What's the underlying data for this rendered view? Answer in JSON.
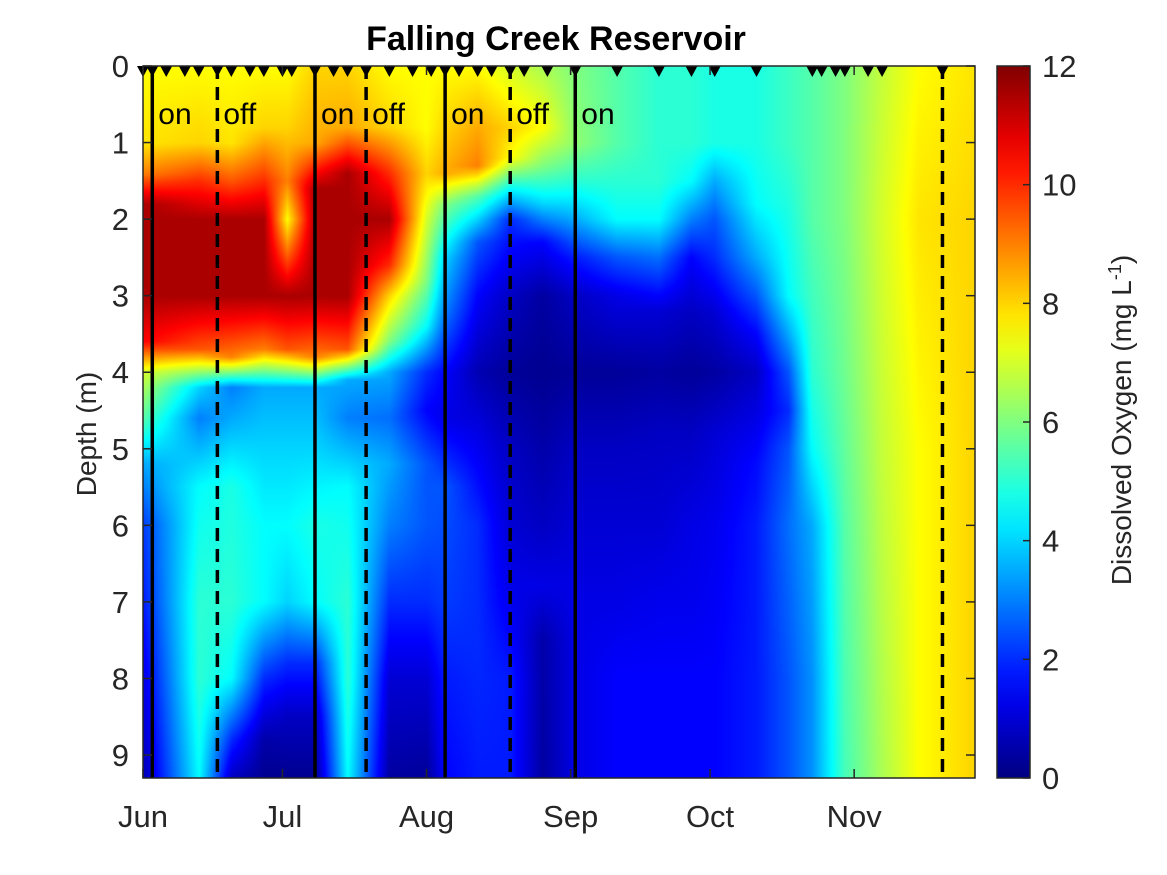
{
  "chart_data": {
    "type": "heatmap",
    "title": "Falling Creek Reservoir",
    "ylabel": "Depth (m)",
    "xlabel": "",
    "colorbar": {
      "label": "Dissolved Oxygen (mg L",
      "label_superscript": "-1",
      "label_close": ")",
      "range": [
        0,
        12
      ],
      "ticks": [
        "0",
        "2",
        "4",
        "6",
        "8",
        "10",
        "12"
      ],
      "colormap": "jet"
    },
    "y_axis": {
      "range": [
        0,
        9.3
      ],
      "reversed": true,
      "ticks": [
        "0",
        "1",
        "2",
        "3",
        "4",
        "5",
        "6",
        "7",
        "8",
        "9"
      ]
    },
    "x_axis": {
      "range": [
        "2019-06-01",
        "2019-11-27"
      ],
      "ticks": [
        {
          "date": "2019-06-01",
          "label": "Jun"
        },
        {
          "date": "2019-07-01",
          "label": "Jul"
        },
        {
          "date": "2019-08-01",
          "label": "Aug"
        },
        {
          "date": "2019-09-01",
          "label": "Sep"
        },
        {
          "date": "2019-10-01",
          "label": "Oct"
        },
        {
          "date": "2019-11-01",
          "label": "Nov"
        }
      ]
    },
    "phase_lines": [
      {
        "date": "2019-06-03",
        "style": "solid",
        "label": "on"
      },
      {
        "date": "2019-06-17",
        "style": "dashed",
        "label": "off"
      },
      {
        "date": "2019-07-08",
        "style": "solid",
        "label": "on"
      },
      {
        "date": "2019-07-19",
        "style": "dashed",
        "label": "off"
      },
      {
        "date": "2019-08-05",
        "style": "solid",
        "label": "on"
      },
      {
        "date": "2019-08-19",
        "style": "dashed",
        "label": "off"
      },
      {
        "date": "2019-09-02",
        "style": "solid",
        "label": "on"
      },
      {
        "date": "2019-11-20",
        "style": "dashed",
        "label": ""
      }
    ],
    "sampling_dates": [
      "2019-06-01",
      "2019-06-03",
      "2019-06-06",
      "2019-06-10",
      "2019-06-13",
      "2019-06-17",
      "2019-06-20",
      "2019-06-24",
      "2019-06-27",
      "2019-07-01",
      "2019-07-03",
      "2019-07-08",
      "2019-07-12",
      "2019-07-15",
      "2019-07-19",
      "2019-07-24",
      "2019-07-29",
      "2019-08-02",
      "2019-08-05",
      "2019-08-08",
      "2019-08-12",
      "2019-08-15",
      "2019-08-19",
      "2019-08-22",
      "2019-08-27",
      "2019-09-02",
      "2019-09-11",
      "2019-09-20",
      "2019-09-27",
      "2019-10-02",
      "2019-10-11",
      "2019-10-23",
      "2019-10-25",
      "2019-10-28",
      "2019-10-30",
      "2019-11-04",
      "2019-11-07",
      "2019-11-20"
    ],
    "profiles": [
      {
        "date": "2019-06-01",
        "depths": [
          0,
          1.0,
          1.4,
          1.8,
          3.0,
          3.6,
          4.0,
          4.6,
          5.2,
          6.0,
          7.0,
          8.0,
          9.3
        ],
        "do": [
          7.5,
          7.8,
          9.0,
          11.5,
          11.5,
          10.5,
          7.0,
          5.5,
          3.5,
          2.2,
          1.8,
          1.2,
          0.6
        ]
      },
      {
        "date": "2019-06-13",
        "depths": [
          0,
          1.0,
          1.5,
          2.0,
          3.0,
          3.7,
          4.2,
          4.6,
          5.5,
          7.0,
          8.0,
          9.3
        ],
        "do": [
          7.5,
          8.0,
          10.0,
          11.5,
          11.5,
          9.5,
          4.0,
          3.0,
          4.5,
          5.0,
          5.0,
          4.5
        ]
      },
      {
        "date": "2019-06-20",
        "depths": [
          0,
          1.0,
          1.5,
          2.0,
          3.0,
          3.8,
          4.2,
          4.6,
          5.5,
          7.0,
          8.0,
          8.8,
          9.3
        ],
        "do": [
          7.5,
          7.8,
          9.5,
          11.5,
          11.5,
          9.0,
          3.0,
          3.5,
          4.8,
          5.0,
          4.5,
          2.0,
          0.8
        ]
      },
      {
        "date": "2019-06-27",
        "depths": [
          0,
          0.8,
          1.5,
          2.0,
          3.0,
          3.7,
          4.2,
          5.0,
          6.0,
          7.0,
          8.0,
          8.8,
          9.3
        ],
        "do": [
          7.5,
          8.0,
          10.0,
          11.5,
          11.5,
          9.0,
          3.5,
          4.0,
          4.5,
          4.5,
          2.0,
          0.5,
          0.2
        ]
      },
      {
        "date": "2019-07-02",
        "depths": [
          0,
          0.8,
          1.5,
          2.0,
          2.5,
          3.0,
          3.7,
          4.2,
          5.0,
          6.0,
          7.0,
          7.8,
          8.5,
          9.3
        ],
        "do": [
          7.5,
          8.0,
          9.0,
          7.5,
          9.5,
          11.5,
          9.5,
          3.5,
          4.0,
          4.5,
          4.0,
          2.0,
          0.8,
          0.2
        ]
      },
      {
        "date": "2019-07-08",
        "depths": [
          0,
          1.0,
          1.6,
          2.0,
          3.0,
          3.8,
          4.2,
          5.0,
          6.0,
          7.0,
          7.8,
          8.5,
          9.3
        ],
        "do": [
          8.0,
          8.5,
          11.5,
          11.5,
          11.5,
          9.0,
          3.5,
          4.0,
          4.8,
          4.5,
          2.0,
          0.8,
          0.2
        ]
      },
      {
        "date": "2019-07-15",
        "depths": [
          0,
          0.8,
          1.4,
          2.0,
          3.0,
          3.7,
          4.1,
          4.6,
          5.5,
          7.0,
          8.0,
          9.3
        ],
        "do": [
          8.0,
          8.5,
          11.5,
          11.5,
          11.5,
          9.5,
          3.5,
          3.0,
          4.5,
          5.0,
          5.0,
          4.5
        ]
      },
      {
        "date": "2019-07-24",
        "depths": [
          0,
          0.8,
          1.4,
          2.0,
          2.6,
          3.0,
          3.6,
          4.0,
          4.6,
          5.2,
          6.0,
          7.0,
          8.0,
          9.3
        ],
        "do": [
          7.5,
          8.0,
          10.0,
          11.5,
          10.0,
          8.0,
          6.0,
          3.5,
          2.8,
          3.5,
          3.0,
          2.0,
          1.0,
          0.4
        ]
      },
      {
        "date": "2019-08-01",
        "depths": [
          0,
          0.8,
          1.4,
          2.0,
          2.8,
          3.4,
          4.0,
          4.5,
          5.2,
          6.0,
          7.0,
          8.0,
          9.3
        ],
        "do": [
          7.5,
          7.5,
          8.0,
          7.0,
          6.0,
          4.5,
          2.0,
          1.5,
          2.5,
          2.5,
          2.0,
          1.0,
          0.3
        ]
      },
      {
        "date": "2019-08-05",
        "depths": [
          0,
          0.8,
          1.4,
          1.8,
          2.5,
          3.2,
          4.0,
          4.6,
          5.5,
          7.0,
          8.0,
          9.3
        ],
        "do": [
          7.5,
          8.0,
          8.5,
          6.0,
          4.0,
          3.0,
          1.5,
          1.2,
          2.5,
          2.2,
          1.8,
          1.5
        ]
      },
      {
        "date": "2019-08-12",
        "depths": [
          0,
          0.8,
          1.3,
          1.7,
          2.3,
          3.0,
          4.0,
          4.8,
          6.0,
          7.5,
          9.3
        ],
        "do": [
          7.5,
          8.5,
          9.0,
          5.5,
          2.5,
          1.5,
          0.6,
          1.2,
          2.0,
          2.0,
          1.8
        ]
      },
      {
        "date": "2019-08-19",
        "depths": [
          0,
          0.8,
          1.2,
          1.6,
          2.0,
          3.0,
          4.0,
          5.0,
          6.0,
          7.0,
          8.0,
          9.3
        ],
        "do": [
          7.0,
          8.0,
          7.5,
          4.5,
          2.0,
          0.8,
          0.3,
          0.8,
          1.0,
          1.3,
          1.8,
          1.8
        ]
      },
      {
        "date": "2019-08-26",
        "depths": [
          0,
          0.8,
          1.3,
          1.8,
          2.3,
          3.0,
          4.0,
          5.0,
          6.0,
          6.8,
          7.5,
          9.3
        ],
        "do": [
          6.5,
          7.5,
          6.0,
          4.0,
          1.5,
          0.4,
          0.2,
          0.5,
          0.8,
          1.2,
          0.5,
          0.4
        ]
      },
      {
        "date": "2019-09-02",
        "depths": [
          0,
          1.0,
          1.5,
          2.0,
          2.5,
          3.0,
          4.0,
          5.0,
          6.0,
          7.0,
          8.0,
          9.3
        ],
        "do": [
          6.0,
          6.2,
          5.0,
          3.5,
          1.8,
          0.8,
          0.3,
          0.8,
          1.0,
          1.2,
          1.2,
          1.2
        ]
      },
      {
        "date": "2019-09-11",
        "depths": [
          0,
          1.0,
          1.5,
          2.0,
          2.5,
          3.0,
          4.0,
          5.0,
          6.0,
          7.0,
          8.0,
          9.3
        ],
        "do": [
          5.5,
          5.5,
          5.0,
          4.5,
          2.5,
          1.2,
          0.3,
          0.8,
          1.0,
          1.2,
          1.5,
          1.5
        ]
      },
      {
        "date": "2019-09-20",
        "depths": [
          0,
          1.0,
          1.5,
          2.0,
          2.5,
          3.2,
          4.0,
          4.8,
          6.0,
          7.0,
          8.0,
          9.3
        ],
        "do": [
          5.0,
          5.0,
          5.0,
          4.5,
          2.8,
          1.0,
          0.4,
          0.8,
          1.0,
          1.3,
          1.5,
          1.5
        ]
      },
      {
        "date": "2019-09-27",
        "depths": [
          0,
          1.0,
          1.5,
          2.0,
          2.5,
          3.2,
          4.0,
          4.8,
          6.0,
          7.0,
          8.0,
          9.3
        ],
        "do": [
          5.0,
          5.0,
          4.5,
          3.0,
          1.5,
          0.8,
          0.3,
          0.8,
          1.2,
          1.3,
          1.5,
          1.5
        ]
      },
      {
        "date": "2019-10-02",
        "depths": [
          0,
          1.0,
          1.5,
          2.0,
          2.5,
          3.2,
          4.0,
          4.8,
          6.0,
          7.0,
          8.0,
          9.3
        ],
        "do": [
          4.8,
          4.8,
          3.5,
          2.5,
          2.0,
          1.0,
          0.4,
          1.0,
          1.3,
          1.4,
          1.5,
          1.5
        ]
      },
      {
        "date": "2019-10-11",
        "depths": [
          0,
          1.0,
          1.8,
          2.5,
          3.0,
          3.5,
          4.0,
          4.6,
          5.2,
          6.0,
          7.0,
          8.0,
          9.3
        ],
        "do": [
          4.8,
          4.8,
          4.5,
          3.5,
          2.5,
          1.5,
          0.8,
          1.2,
          1.6,
          1.8,
          1.8,
          1.8,
          1.8
        ]
      },
      {
        "date": "2019-10-18",
        "depths": [
          0,
          1.0,
          2.0,
          3.0,
          3.5,
          4.0,
          4.5,
          5.0,
          6.0,
          8.0,
          9.3
        ],
        "do": [
          5.2,
          5.2,
          4.8,
          4.5,
          3.5,
          2.5,
          2.0,
          2.5,
          2.8,
          2.5,
          2.5
        ]
      },
      {
        "date": "2019-10-23",
        "depths": [
          0,
          2.0,
          4.0,
          5.0,
          6.0,
          8.0,
          9.3
        ],
        "do": [
          5.5,
          5.5,
          5.0,
          4.5,
          3.5,
          3.2,
          3.2
        ]
      },
      {
        "date": "2019-10-30",
        "depths": [
          0,
          2.0,
          4.0,
          6.0,
          9.3
        ],
        "do": [
          6.0,
          6.0,
          5.8,
          5.5,
          5.3
        ]
      },
      {
        "date": "2019-11-07",
        "depths": [
          0,
          2.0,
          5.0,
          9.3
        ],
        "do": [
          6.8,
          7.0,
          6.8,
          6.5
        ]
      },
      {
        "date": "2019-11-15",
        "depths": [
          0,
          2.0,
          5.0,
          9.3
        ],
        "do": [
          7.5,
          7.8,
          7.5,
          7.5
        ]
      },
      {
        "date": "2019-11-27",
        "depths": [
          0,
          2.0,
          5.0,
          9.3
        ],
        "do": [
          7.8,
          8.0,
          8.0,
          8.0
        ]
      }
    ]
  }
}
